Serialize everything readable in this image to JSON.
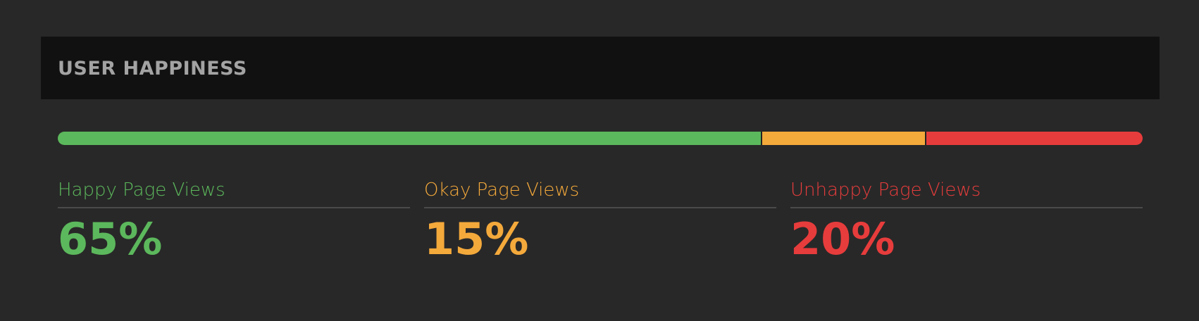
{
  "header": {
    "title": "USER HAPPINESS"
  },
  "colors": {
    "happy": "#5cb85c",
    "okay": "#f4a93b",
    "unhappy": "#e73c3c"
  },
  "metrics": [
    {
      "key": "happy",
      "label": "Happy Page Views",
      "value": "65%",
      "percent": 65
    },
    {
      "key": "okay",
      "label": "Okay Page Views",
      "value": "15%",
      "percent": 15
    },
    {
      "key": "unhappy",
      "label": "Unhappy Page Views",
      "value": "20%",
      "percent": 20
    }
  ]
}
